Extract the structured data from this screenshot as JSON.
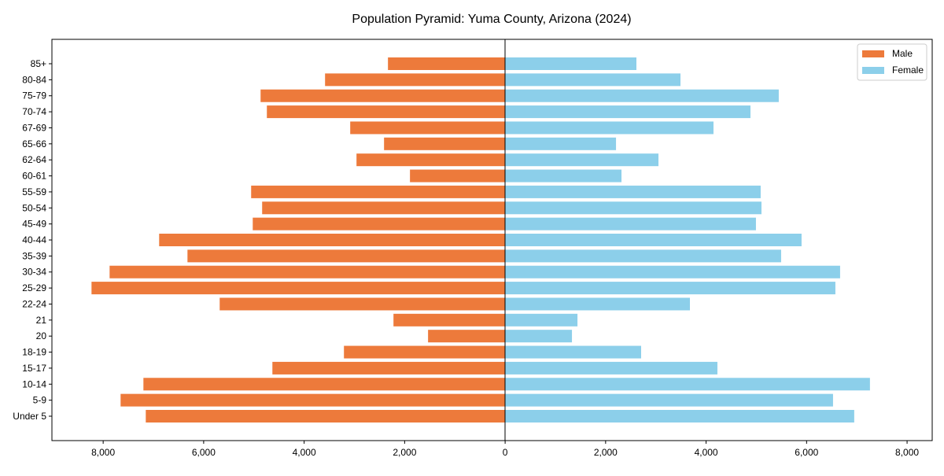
{
  "chart_data": {
    "type": "bar",
    "orientation": "horizontal-pyramid",
    "title": "Population Pyramid: Yuma County, Arizona (2024)",
    "xlabel": "",
    "ylabel": "",
    "xlim": [
      -9020,
      8500
    ],
    "xticks": [
      -8000,
      -6000,
      -4000,
      -2000,
      0,
      2000,
      4000,
      6000,
      8000
    ],
    "xtick_labels": [
      "8,000",
      "6,000",
      "4,000",
      "2,000",
      "0",
      "2,000",
      "4,000",
      "6,000",
      "8,000"
    ],
    "grid": false,
    "legend_position": "top-right",
    "categories": [
      "Under 5",
      "5-9",
      "10-14",
      "15-17",
      "18-19",
      "20",
      "21",
      "22-24",
      "25-29",
      "30-34",
      "35-39",
      "40-44",
      "45-49",
      "50-54",
      "55-59",
      "60-61",
      "62-64",
      "65-66",
      "67-69",
      "70-74",
      "75-79",
      "80-84",
      "85+"
    ],
    "series": [
      {
        "name": "Male",
        "color": "#ed7a3b",
        "values": [
          7152,
          7653,
          7199,
          4632,
          3208,
          1534,
          2222,
          5681,
          8232,
          7872,
          6322,
          6886,
          5023,
          4836,
          5055,
          1894,
          2958,
          2410,
          3083,
          4742,
          4867,
          3584,
          2332
        ]
      },
      {
        "name": "Female",
        "color": "#8ccfea",
        "values": [
          6948,
          6526,
          7261,
          4225,
          2707,
          1330,
          1440,
          3678,
          6573,
          6667,
          5493,
          5900,
          4992,
          5102,
          5086,
          2316,
          3052,
          2207,
          4147,
          4883,
          5446,
          3490,
          2613
        ]
      }
    ]
  }
}
